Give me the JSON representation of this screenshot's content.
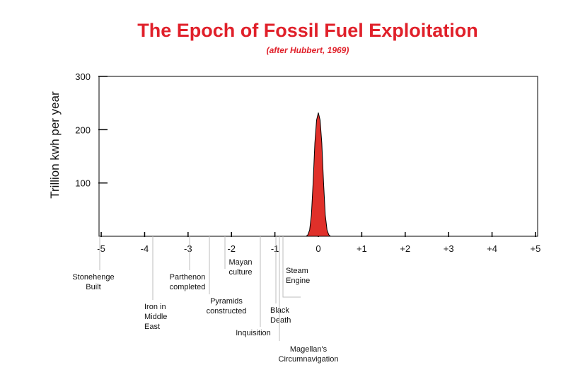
{
  "chart_data": {
    "type": "area",
    "title": "The Epoch of Fossil Fuel Exploitation",
    "subtitle": "(after Hubbert, 1969)",
    "ylabel": "Trillion kwh per year",
    "xlabel": "",
    "xlim": [
      -5.05,
      5.05
    ],
    "ylim": [
      0,
      300
    ],
    "yticks": [
      {
        "value": 100,
        "label": "100"
      },
      {
        "value": 200,
        "label": "200"
      },
      {
        "value": 300,
        "label": "300"
      }
    ],
    "xticks": [
      {
        "value": -5,
        "label": "-5"
      },
      {
        "value": -4,
        "label": "-4"
      },
      {
        "value": -3,
        "label": "-3"
      },
      {
        "value": -2,
        "label": "-2"
      },
      {
        "value": -1,
        "label": "-1"
      },
      {
        "value": 0,
        "label": "0"
      },
      {
        "value": 1,
        "label": "+1"
      },
      {
        "value": 2,
        "label": "+2"
      },
      {
        "value": 3,
        "label": "+3"
      },
      {
        "value": 4,
        "label": "+4"
      },
      {
        "value": 5,
        "label": "+5"
      }
    ],
    "series": [
      {
        "color": "#e0302a",
        "x": [
          -0.28,
          -0.24,
          -0.2,
          -0.16,
          -0.12,
          -0.08,
          -0.04,
          0.0,
          0.04,
          0.08,
          0.12,
          0.16,
          0.2,
          0.24,
          0.28
        ],
        "y": [
          0,
          3,
          12,
          40,
          100,
          175,
          218,
          232,
          218,
          175,
          100,
          40,
          12,
          3,
          0
        ]
      }
    ],
    "annotations": [
      {
        "x": -5.0,
        "lines": [
          "Stonehenge",
          "Built"
        ]
      },
      {
        "x": -4.0,
        "lines": [
          "Iron in",
          "Middle",
          "East"
        ]
      },
      {
        "x": -2.5,
        "lines": [
          "Parthenon",
          "completed"
        ]
      },
      {
        "x": -2.0,
        "lines": [
          "Pyramids",
          "constructed"
        ]
      },
      {
        "x": -1.6,
        "lines": [
          "Mayan",
          "culture"
        ]
      },
      {
        "x": -0.9,
        "lines": [
          "Inquisition"
        ]
      },
      {
        "x": -0.6,
        "lines": [
          "Black",
          "Death"
        ]
      },
      {
        "x": -0.5,
        "lines": [
          "Magellan's",
          "Circumnavigation"
        ]
      },
      {
        "x": -0.3,
        "lines": [
          "Steam",
          "Engine"
        ]
      }
    ],
    "grid": false
  }
}
